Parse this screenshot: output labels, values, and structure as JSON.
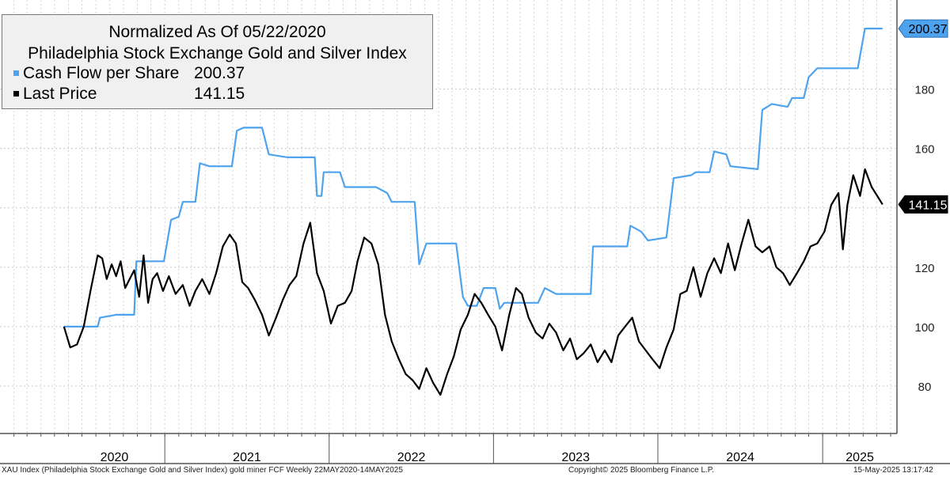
{
  "legend": {
    "title_line1": "Normalized As Of 05/22/2020",
    "title_line2": "Philadelphia Stock Exchange Gold and Silver Index",
    "series": [
      {
        "label": "Cash Flow per Share",
        "value": "200.37",
        "color": "#4ea3ef"
      },
      {
        "label": "Last Price",
        "value": "141.15",
        "color": "#000000"
      }
    ]
  },
  "footer": {
    "left": "XAU Index (Philadelphia Stock Exchange Gold and Silver Index) gold miner FCF  Weekly 22MAY2020-14MAY2025",
    "middle": "Copyright© 2025 Bloomberg Finance L.P.",
    "right": "15-May-2025 13:17:42"
  },
  "chart_data": {
    "type": "line",
    "x_start": "2020-05-22",
    "x_end": "2025-05-14",
    "x_domain": [
      "2020-01-01",
      "2025-06-15"
    ],
    "x_year_labels": [
      "2020",
      "2021",
      "2022",
      "2023",
      "2024",
      "2025"
    ],
    "y_ticks": [
      80,
      100,
      120,
      140,
      160,
      180
    ],
    "y_tick_labels": [
      "80",
      "100",
      "120",
      "",
      "160",
      "180"
    ],
    "ylim": [
      64,
      210
    ],
    "grid": true,
    "legend_position": "top-left",
    "last_value_tags": [
      {
        "series": "Cash Flow per Share",
        "value": "200.37"
      },
      {
        "series": "Last Price",
        "value": "141.15"
      }
    ],
    "series": [
      {
        "name": "Cash Flow per Share",
        "color": "#4ea3ef",
        "points": [
          [
            "2020-05-22",
            100
          ],
          [
            "2020-08-05",
            100
          ],
          [
            "2020-08-10",
            103
          ],
          [
            "2020-09-15",
            104
          ],
          [
            "2020-10-25",
            104
          ],
          [
            "2020-10-30",
            122
          ],
          [
            "2020-12-30",
            122
          ],
          [
            "2021-01-15",
            136
          ],
          [
            "2021-02-01",
            137
          ],
          [
            "2021-02-10",
            142
          ],
          [
            "2021-03-10",
            142
          ],
          [
            "2021-03-20",
            155
          ],
          [
            "2021-04-10",
            154
          ],
          [
            "2021-05-30",
            154
          ],
          [
            "2021-06-10",
            166
          ],
          [
            "2021-06-25",
            167
          ],
          [
            "2021-08-05",
            167
          ],
          [
            "2021-08-20",
            158
          ],
          [
            "2021-10-01",
            157
          ],
          [
            "2021-11-30",
            157
          ],
          [
            "2021-12-05",
            144
          ],
          [
            "2021-12-15",
            144
          ],
          [
            "2021-12-20",
            152
          ],
          [
            "2022-01-25",
            152
          ],
          [
            "2022-02-05",
            147
          ],
          [
            "2022-04-15",
            147
          ],
          [
            "2022-05-10",
            145
          ],
          [
            "2022-05-20",
            142
          ],
          [
            "2022-07-10",
            142
          ],
          [
            "2022-07-20",
            121
          ],
          [
            "2022-08-05",
            128
          ],
          [
            "2022-10-10",
            128
          ],
          [
            "2022-10-25",
            110
          ],
          [
            "2022-11-05",
            107
          ],
          [
            "2022-11-25",
            107
          ],
          [
            "2022-12-10",
            113
          ],
          [
            "2023-01-05",
            113
          ],
          [
            "2023-01-15",
            106
          ],
          [
            "2023-01-25",
            108
          ],
          [
            "2023-04-10",
            108
          ],
          [
            "2023-04-25",
            113
          ],
          [
            "2023-05-20",
            111
          ],
          [
            "2023-07-05",
            111
          ],
          [
            "2023-07-15",
            111
          ],
          [
            "2023-08-05",
            111
          ],
          [
            "2023-08-10",
            127
          ],
          [
            "2023-10-25",
            127
          ],
          [
            "2023-11-01",
            134
          ],
          [
            "2023-11-25",
            132
          ],
          [
            "2023-12-10",
            129
          ],
          [
            "2024-01-20",
            130
          ],
          [
            "2024-02-05",
            150
          ],
          [
            "2024-03-15",
            151
          ],
          [
            "2024-03-25",
            152
          ],
          [
            "2024-04-25",
            152
          ],
          [
            "2024-05-05",
            159
          ],
          [
            "2024-06-01",
            158
          ],
          [
            "2024-06-10",
            154
          ],
          [
            "2024-08-10",
            153
          ],
          [
            "2024-08-20",
            173
          ],
          [
            "2024-09-10",
            175
          ],
          [
            "2024-10-15",
            174
          ],
          [
            "2024-10-25",
            177
          ],
          [
            "2024-11-20",
            177
          ],
          [
            "2024-12-01",
            184
          ],
          [
            "2024-12-20",
            187
          ],
          [
            "2025-03-20",
            187
          ],
          [
            "2025-04-05",
            200.37
          ],
          [
            "2025-05-14",
            200.37
          ]
        ]
      },
      {
        "name": "Last Price",
        "color": "#000000",
        "points": [
          [
            "2020-05-22",
            100
          ],
          [
            "2020-06-05",
            93
          ],
          [
            "2020-06-20",
            94
          ],
          [
            "2020-07-05",
            100
          ],
          [
            "2020-07-20",
            112
          ],
          [
            "2020-08-05",
            124
          ],
          [
            "2020-08-15",
            123
          ],
          [
            "2020-08-25",
            116
          ],
          [
            "2020-09-05",
            121
          ],
          [
            "2020-09-15",
            117
          ],
          [
            "2020-09-25",
            122
          ],
          [
            "2020-10-05",
            113
          ],
          [
            "2020-10-15",
            116
          ],
          [
            "2020-10-25",
            119
          ],
          [
            "2020-11-05",
            110
          ],
          [
            "2020-11-15",
            124
          ],
          [
            "2020-11-25",
            108
          ],
          [
            "2020-12-05",
            116
          ],
          [
            "2020-12-15",
            118
          ],
          [
            "2020-12-28",
            112
          ],
          [
            "2021-01-10",
            117
          ],
          [
            "2021-01-25",
            111
          ],
          [
            "2021-02-10",
            114
          ],
          [
            "2021-02-25",
            107
          ],
          [
            "2021-03-10",
            112
          ],
          [
            "2021-03-25",
            116
          ],
          [
            "2021-04-10",
            111
          ],
          [
            "2021-04-25",
            118
          ],
          [
            "2021-05-10",
            127
          ],
          [
            "2021-05-25",
            131
          ],
          [
            "2021-06-08",
            128
          ],
          [
            "2021-06-22",
            115
          ],
          [
            "2021-07-05",
            113
          ],
          [
            "2021-07-20",
            109
          ],
          [
            "2021-08-05",
            104
          ],
          [
            "2021-08-20",
            97
          ],
          [
            "2021-09-05",
            103
          ],
          [
            "2021-09-20",
            109
          ],
          [
            "2021-10-05",
            114
          ],
          [
            "2021-10-20",
            117
          ],
          [
            "2021-11-05",
            128
          ],
          [
            "2021-11-20",
            135
          ],
          [
            "2021-12-05",
            118
          ],
          [
            "2021-12-20",
            112
          ],
          [
            "2022-01-05",
            101
          ],
          [
            "2022-01-20",
            107
          ],
          [
            "2022-02-05",
            108
          ],
          [
            "2022-02-20",
            112
          ],
          [
            "2022-03-05",
            122
          ],
          [
            "2022-03-20",
            130
          ],
          [
            "2022-04-05",
            128
          ],
          [
            "2022-04-20",
            121
          ],
          [
            "2022-05-05",
            104
          ],
          [
            "2022-05-20",
            95
          ],
          [
            "2022-06-05",
            89
          ],
          [
            "2022-06-20",
            84
          ],
          [
            "2022-07-05",
            82
          ],
          [
            "2022-07-20",
            79
          ],
          [
            "2022-08-05",
            86
          ],
          [
            "2022-08-20",
            81
          ],
          [
            "2022-09-05",
            77
          ],
          [
            "2022-09-20",
            84
          ],
          [
            "2022-10-05",
            90
          ],
          [
            "2022-10-20",
            99
          ],
          [
            "2022-11-05",
            104
          ],
          [
            "2022-11-20",
            111
          ],
          [
            "2022-12-05",
            108
          ],
          [
            "2022-12-20",
            104
          ],
          [
            "2023-01-05",
            100
          ],
          [
            "2023-01-20",
            92
          ],
          [
            "2023-02-05",
            104
          ],
          [
            "2023-02-20",
            113
          ],
          [
            "2023-03-05",
            111
          ],
          [
            "2023-03-20",
            103
          ],
          [
            "2023-04-05",
            98
          ],
          [
            "2023-04-20",
            96
          ],
          [
            "2023-05-05",
            101
          ],
          [
            "2023-05-20",
            98
          ],
          [
            "2023-06-05",
            92
          ],
          [
            "2023-06-20",
            96
          ],
          [
            "2023-07-05",
            89
          ],
          [
            "2023-07-20",
            91
          ],
          [
            "2023-08-05",
            94
          ],
          [
            "2023-08-20",
            88
          ],
          [
            "2023-09-05",
            92
          ],
          [
            "2023-09-20",
            88
          ],
          [
            "2023-10-05",
            97
          ],
          [
            "2023-10-20",
            100
          ],
          [
            "2023-11-05",
            103
          ],
          [
            "2023-11-20",
            95
          ],
          [
            "2023-12-05",
            92
          ],
          [
            "2023-12-20",
            89
          ],
          [
            "2024-01-05",
            86
          ],
          [
            "2024-01-20",
            93
          ],
          [
            "2024-02-05",
            99
          ],
          [
            "2024-02-20",
            111
          ],
          [
            "2024-03-05",
            112
          ],
          [
            "2024-03-20",
            120
          ],
          [
            "2024-04-05",
            110
          ],
          [
            "2024-04-20",
            118
          ],
          [
            "2024-05-05",
            123
          ],
          [
            "2024-05-20",
            118
          ],
          [
            "2024-06-05",
            128
          ],
          [
            "2024-06-20",
            119
          ],
          [
            "2024-07-05",
            128
          ],
          [
            "2024-07-20",
            136
          ],
          [
            "2024-08-05",
            127
          ],
          [
            "2024-08-20",
            125
          ],
          [
            "2024-09-05",
            127
          ],
          [
            "2024-09-20",
            120
          ],
          [
            "2024-10-05",
            118
          ],
          [
            "2024-10-20",
            114
          ],
          [
            "2024-11-05",
            118
          ],
          [
            "2024-11-20",
            122
          ],
          [
            "2024-12-05",
            127
          ],
          [
            "2024-12-20",
            128
          ],
          [
            "2025-01-05",
            132
          ],
          [
            "2025-01-20",
            141
          ],
          [
            "2025-02-05",
            145
          ],
          [
            "2025-02-15",
            126
          ],
          [
            "2025-02-25",
            141
          ],
          [
            "2025-03-10",
            151
          ],
          [
            "2025-03-25",
            144
          ],
          [
            "2025-04-05",
            153
          ],
          [
            "2025-04-20",
            147
          ],
          [
            "2025-05-14",
            141.15
          ]
        ]
      }
    ]
  }
}
